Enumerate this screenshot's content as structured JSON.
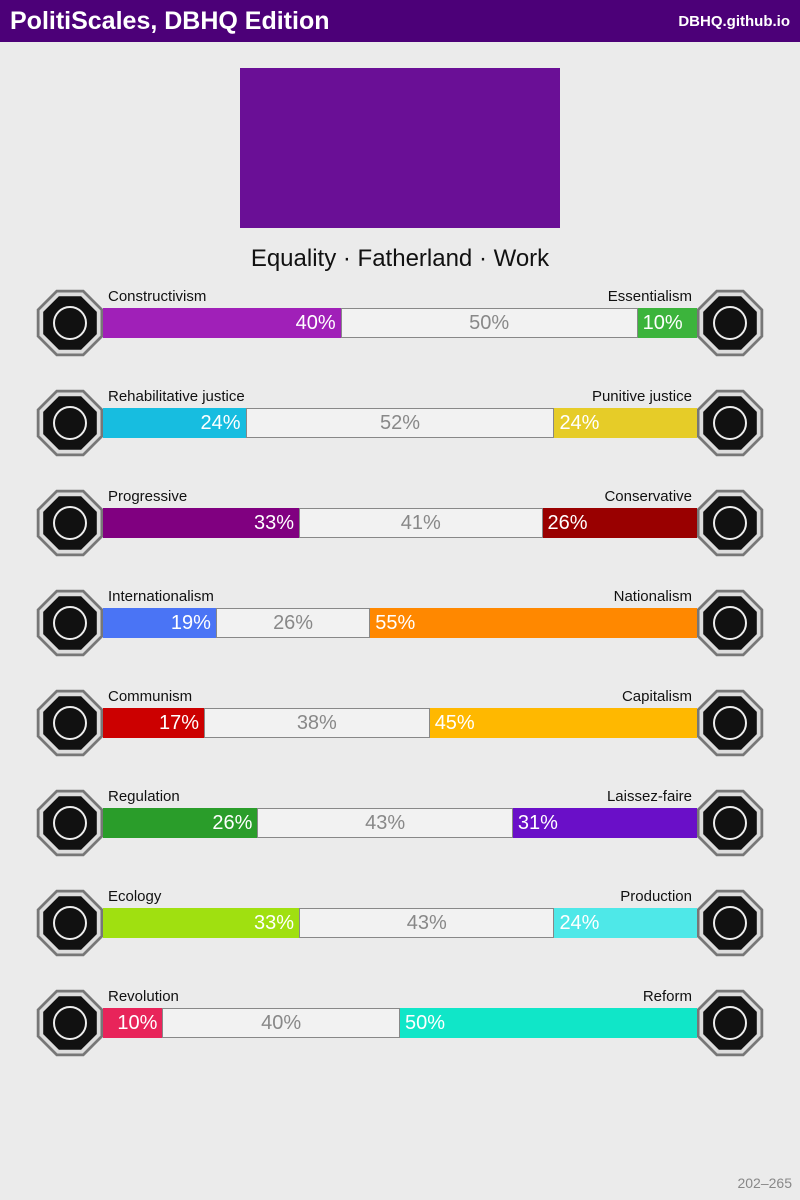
{
  "header": {
    "title": "PolitiScales, DBHQ Edition",
    "link": "DBHQ.github.io"
  },
  "flag": {
    "color": "#6a0f96"
  },
  "slogan": "Equality · Fatherland · Work",
  "scales": [
    {
      "left": {
        "name": "Constructivism",
        "value": 40,
        "value_label": "40%",
        "color": "#a020b8"
      },
      "middle": {
        "value": 50,
        "value_label": "50%"
      },
      "right": {
        "name": "Essentialism",
        "value": 10,
        "value_label": "10%",
        "color": "#3cb43c"
      }
    },
    {
      "left": {
        "name": "Rehabilitative justice",
        "value": 24,
        "value_label": "24%",
        "color": "#17bde0"
      },
      "middle": {
        "value": 52,
        "value_label": "52%"
      },
      "right": {
        "name": "Punitive justice",
        "value": 24,
        "value_label": "24%",
        "color": "#e6cc28"
      }
    },
    {
      "left": {
        "name": "Progressive",
        "value": 33,
        "value_label": "33%",
        "color": "#800080"
      },
      "middle": {
        "value": 41,
        "value_label": "41%"
      },
      "right": {
        "name": "Conservative",
        "value": 26,
        "value_label": "26%",
        "color": "#990000"
      }
    },
    {
      "left": {
        "name": "Internationalism",
        "value": 19,
        "value_label": "19%",
        "color": "#4a74f5"
      },
      "middle": {
        "value": 26,
        "value_label": "26%"
      },
      "right": {
        "name": "Nationalism",
        "value": 55,
        "value_label": "55%",
        "color": "#ff8800"
      }
    },
    {
      "left": {
        "name": "Communism",
        "value": 17,
        "value_label": "17%",
        "color": "#cc0000"
      },
      "middle": {
        "value": 38,
        "value_label": "38%"
      },
      "right": {
        "name": "Capitalism",
        "value": 45,
        "value_label": "45%",
        "color": "#ffb800"
      }
    },
    {
      "left": {
        "name": "Regulation",
        "value": 26,
        "value_label": "26%",
        "color": "#2a9d2a"
      },
      "middle": {
        "value": 43,
        "value_label": "43%"
      },
      "right": {
        "name": "Laissez-faire",
        "value": 31,
        "value_label": "31%",
        "color": "#6a0fc8"
      }
    },
    {
      "left": {
        "name": "Ecology",
        "value": 33,
        "value_label": "33%",
        "color": "#a0e010"
      },
      "middle": {
        "value": 43,
        "value_label": "43%"
      },
      "right": {
        "name": "Production",
        "value": 24,
        "value_label": "24%",
        "color": "#4ee8e8"
      }
    },
    {
      "left": {
        "name": "Revolution",
        "value": 10,
        "value_label": "10%",
        "color": "#e8245a"
      },
      "middle": {
        "value": 40,
        "value_label": "40%"
      },
      "right": {
        "name": "Reform",
        "value": 50,
        "value_label": "50%",
        "color": "#10e6c8"
      }
    }
  ],
  "footer": "202–265"
}
